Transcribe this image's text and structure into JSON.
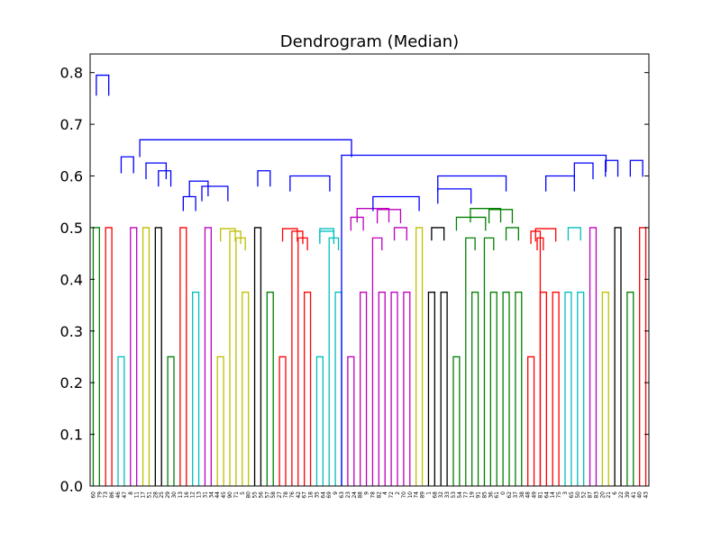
{
  "chart_data": {
    "type": "dendrogram",
    "title": "Dendrogram (Median)",
    "xlabel": "",
    "ylabel": "",
    "ylim": [
      0.0,
      0.836
    ],
    "yticks": [
      0.0,
      0.1,
      0.2,
      0.3,
      0.4,
      0.5,
      0.6,
      0.7,
      0.8
    ],
    "ytick_labels": [
      "0.0",
      "0.1",
      "0.2",
      "0.3",
      "0.4",
      "0.5",
      "0.6",
      "0.7",
      "0.8"
    ],
    "grid": false,
    "leaf_labels": [
      "60",
      "79",
      "73",
      "86",
      "46",
      "47",
      "8",
      "11",
      "17",
      "51",
      "28",
      "25",
      "29",
      "30",
      "13",
      "16",
      "12",
      "13",
      "31",
      "34",
      "44",
      "45",
      "90",
      "71",
      "5",
      "80",
      "55",
      "56",
      "57",
      "58",
      "27",
      "78",
      "76",
      "42",
      "67",
      "18",
      "35",
      "64",
      "69",
      "9",
      "63",
      "23",
      "24",
      "88",
      "9",
      "78",
      "82",
      "4",
      "72",
      "2",
      "70",
      "10",
      "74",
      "89",
      "1",
      "68",
      "32",
      "33",
      "53",
      "54",
      "77",
      "19",
      "91",
      "85",
      "36",
      "61",
      "0",
      "62",
      "37",
      "38",
      "48",
      "49",
      "81",
      "64",
      "14",
      "75",
      "3",
      "65",
      "50",
      "52",
      "87",
      "83",
      "20",
      "21",
      "6",
      "22",
      "39",
      "41",
      "40",
      "43"
    ],
    "links": [
      {
        "x1": 1,
        "x2": 2,
        "h": 0.5,
        "c": "#008000"
      },
      {
        "x1": 3,
        "x2": 4,
        "h": 0.5,
        "c": "#ff0000"
      },
      {
        "x1": 5,
        "x2": 6,
        "h": 0.25,
        "c": "#00bfbf"
      },
      {
        "x1": 7,
        "x2": 8,
        "h": 0.5,
        "c": "#bf00bf"
      },
      {
        "x1": 9,
        "x2": 10,
        "h": 0.5,
        "c": "#bfbf00"
      },
      {
        "x1": 11,
        "x2": 12,
        "h": 0.5,
        "c": "#000000"
      },
      {
        "x1": 13,
        "x2": 14,
        "h": 0.25,
        "c": "#008000"
      },
      {
        "x1": 15,
        "x2": 16,
        "h": 0.5,
        "c": "#ff0000"
      },
      {
        "x1": 17,
        "x2": 18,
        "h": 0.375,
        "c": "#00bfbf"
      },
      {
        "x1": 19,
        "x2": 20,
        "h": 0.5,
        "c": "#bf00bf"
      },
      {
        "x1": 21,
        "x2": 22,
        "h": 0.25,
        "c": "#bfbf00"
      },
      {
        "x1": 25,
        "x2": 26,
        "h": 0.375,
        "c": "#bfbf00"
      },
      {
        "x1": 24,
        "x2": 25.5,
        "h": 0.48,
        "c": "#bfbf00"
      },
      {
        "x1": 23,
        "x2": 24.75,
        "h": 0.493,
        "c": "#bfbf00"
      },
      {
        "x1": 21.5,
        "x2": 23.875,
        "h": 0.498,
        "c": "#bfbf00"
      },
      {
        "x1": 27,
        "x2": 28,
        "h": 0.5,
        "c": "#000000"
      },
      {
        "x1": 29,
        "x2": 30,
        "h": 0.375,
        "c": "#008000"
      },
      {
        "x1": 31,
        "x2": 32,
        "h": 0.25,
        "c": "#ff0000"
      },
      {
        "x1": 35,
        "x2": 36,
        "h": 0.375,
        "c": "#ff0000"
      },
      {
        "x1": 34,
        "x2": 35.5,
        "h": 0.48,
        "c": "#ff0000"
      },
      {
        "x1": 33,
        "x2": 34.75,
        "h": 0.493,
        "c": "#ff0000"
      },
      {
        "x1": 31.5,
        "x2": 33.875,
        "h": 0.498,
        "c": "#ff0000"
      },
      {
        "x1": 37,
        "x2": 38,
        "h": 0.25,
        "c": "#00bfbf"
      },
      {
        "x1": 40,
        "x2": 41,
        "h": 0.375,
        "c": "#00bfbf"
      },
      {
        "x1": 39,
        "x2": 40.5,
        "h": 0.48,
        "c": "#00bfbf"
      },
      {
        "x1": 37.5,
        "x2": 39.75,
        "h": 0.493,
        "c": "#00bfbf"
      },
      {
        "x1": 37.5,
        "x2": 39.75,
        "h": 0.498,
        "c": "#00bfbf"
      },
      {
        "x1": 42,
        "x2": 43,
        "h": 0.25,
        "c": "#bf00bf"
      },
      {
        "x1": 44,
        "x2": 45,
        "h": 0.375,
        "c": "#bf00bf"
      },
      {
        "x1": 42.5,
        "x2": 44.5,
        "h": 0.52,
        "c": "#bf00bf"
      },
      {
        "x1": 47,
        "x2": 48,
        "h": 0.375,
        "c": "#bf00bf"
      },
      {
        "x1": 46,
        "x2": 47.5,
        "h": 0.48,
        "c": "#bf00bf"
      },
      {
        "x1": 49,
        "x2": 50,
        "h": 0.375,
        "c": "#bf00bf"
      },
      {
        "x1": 51,
        "x2": 52,
        "h": 0.375,
        "c": "#bf00bf"
      },
      {
        "x1": 49.5,
        "x2": 51.5,
        "h": 0.5,
        "c": "#bf00bf"
      },
      {
        "x1": 46.75,
        "x2": 50.5,
        "h": 0.535,
        "c": "#bf00bf"
      },
      {
        "x1": 43.5,
        "x2": 48.625,
        "h": 0.537,
        "c": "#bf00bf"
      },
      {
        "x1": 53,
        "x2": 54,
        "h": 0.5,
        "c": "#bfbf00"
      },
      {
        "x1": 55,
        "x2": 56,
        "h": 0.375,
        "c": "#000000"
      },
      {
        "x1": 57,
        "x2": 58,
        "h": 0.375,
        "c": "#000000"
      },
      {
        "x1": 55.5,
        "x2": 57.5,
        "h": 0.5,
        "c": "#000000"
      },
      {
        "x1": 59,
        "x2": 60,
        "h": 0.25,
        "c": "#008000"
      },
      {
        "x1": 62,
        "x2": 63,
        "h": 0.375,
        "c": "#008000"
      },
      {
        "x1": 61,
        "x2": 62.5,
        "h": 0.48,
        "c": "#008000"
      },
      {
        "x1": 65,
        "x2": 66,
        "h": 0.375,
        "c": "#008000"
      },
      {
        "x1": 64,
        "x2": 65.5,
        "h": 0.48,
        "c": "#008000"
      },
      {
        "x1": 67,
        "x2": 68,
        "h": 0.375,
        "c": "#008000"
      },
      {
        "x1": 69,
        "x2": 70,
        "h": 0.375,
        "c": "#008000"
      },
      {
        "x1": 67.5,
        "x2": 69.5,
        "h": 0.5,
        "c": "#008000"
      },
      {
        "x1": 64.75,
        "x2": 68.5,
        "h": 0.535,
        "c": "#008000"
      },
      {
        "x1": 61.75,
        "x2": 66.625,
        "h": 0.537,
        "c": "#008000"
      },
      {
        "x1": 59.5,
        "x2": 64.19,
        "h": 0.52,
        "c": "#008000"
      },
      {
        "x1": 71,
        "x2": 72,
        "h": 0.25,
        "c": "#ff0000"
      },
      {
        "x1": 73,
        "x2": 74,
        "h": 0.375,
        "c": "#ff0000"
      },
      {
        "x1": 72.5,
        "x2": 73.5,
        "h": 0.48,
        "c": "#ff0000"
      },
      {
        "x1": 71.5,
        "x2": 73,
        "h": 0.493,
        "c": "#ff0000"
      },
      {
        "x1": 75,
        "x2": 76,
        "h": 0.375,
        "c": "#ff0000"
      },
      {
        "x1": 72.25,
        "x2": 75.5,
        "h": 0.498,
        "c": "#ff0000"
      },
      {
        "x1": 77,
        "x2": 78,
        "h": 0.375,
        "c": "#00bfbf"
      },
      {
        "x1": 79,
        "x2": 80,
        "h": 0.375,
        "c": "#00bfbf"
      },
      {
        "x1": 77.5,
        "x2": 79.5,
        "h": 0.5,
        "c": "#00bfbf"
      },
      {
        "x1": 81,
        "x2": 82,
        "h": 0.5,
        "c": "#bf00bf"
      },
      {
        "x1": 83,
        "x2": 84,
        "h": 0.375,
        "c": "#bfbf00"
      },
      {
        "x1": 85,
        "x2": 86,
        "h": 0.5,
        "c": "#000000"
      },
      {
        "x1": 87,
        "x2": 88,
        "h": 0.375,
        "c": "#008000"
      },
      {
        "x1": 89,
        "x2": 90,
        "h": 0.5,
        "c": "#ff0000"
      },
      {
        "x1": 1.5,
        "x2": 3.5,
        "h": 0.795,
        "c": "#0000ff"
      },
      {
        "x1": 5.5,
        "x2": 7.5,
        "h": 0.637,
        "c": "#0000ff"
      },
      {
        "x1": 9.5,
        "x2": 12.75,
        "h": 0.625,
        "c": "#0000ff"
      },
      {
        "x1": 11.5,
        "x2": 13.5,
        "h": 0.61,
        "c": "#0000ff"
      },
      {
        "x1": 15.5,
        "x2": 17.5,
        "h": 0.56,
        "c": "#0000ff"
      },
      {
        "x1": 16.5,
        "x2": 19.5,
        "h": 0.59,
        "c": "#0000ff"
      },
      {
        "x1": 18.5,
        "x2": 22.69,
        "h": 0.58,
        "c": "#0000ff"
      },
      {
        "x1": 27.5,
        "x2": 29.5,
        "h": 0.61,
        "c": "#0000ff"
      },
      {
        "x1": 32.7,
        "x2": 39.1,
        "h": 0.6,
        "c": "#0000ff"
      },
      {
        "x1": 46.06,
        "x2": 53.5,
        "h": 0.56,
        "c": "#0000ff"
      },
      {
        "x1": 56.5,
        "x2": 61.85,
        "h": 0.575,
        "c": "#0000ff"
      },
      {
        "x1": 56.5,
        "x2": 67.5,
        "h": 0.6,
        "c": "#0000ff"
      },
      {
        "x1": 73.9,
        "x2": 78.5,
        "h": 0.6,
        "c": "#0000ff"
      },
      {
        "x1": 78.5,
        "x2": 81.5,
        "h": 0.625,
        "c": "#0000ff"
      },
      {
        "x1": 83.5,
        "x2": 85.5,
        "h": 0.63,
        "c": "#0000ff"
      },
      {
        "x1": 87.5,
        "x2": 89.5,
        "h": 0.63,
        "c": "#0000ff"
      },
      {
        "x1": 8.5,
        "x2": 42.6,
        "h": 0.67,
        "c": "#0000ff"
      },
      {
        "x1": 41,
        "x2": 83.6,
        "h": 0.64,
        "c": "#0000ff"
      }
    ]
  }
}
